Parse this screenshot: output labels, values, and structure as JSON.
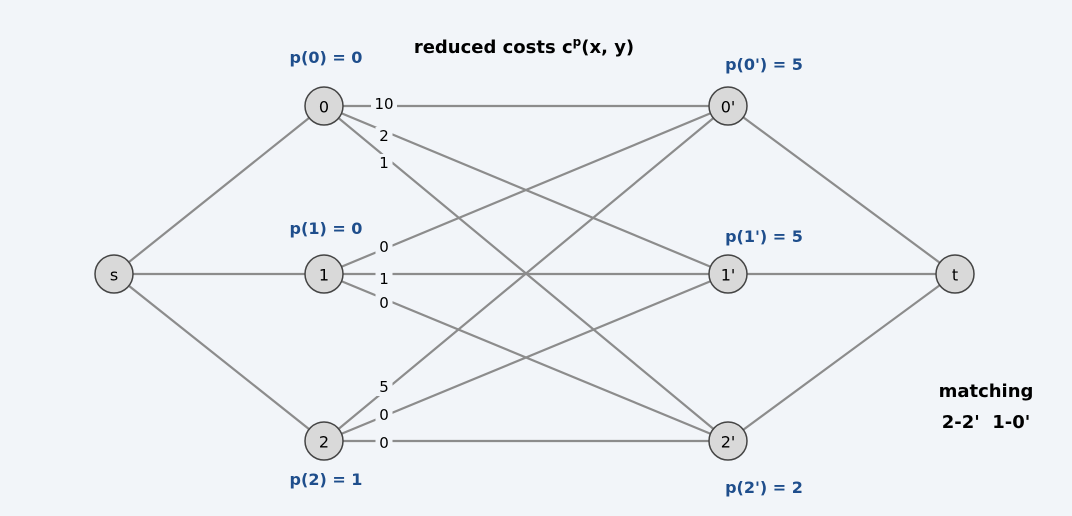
{
  "title": {
    "main": "reduced costs c",
    "sup": "p",
    "args": "(x, y)"
  },
  "nodes": [
    {
      "id": "s",
      "label": "s"
    },
    {
      "id": "0",
      "label": "0"
    },
    {
      "id": "1",
      "label": "1"
    },
    {
      "id": "2",
      "label": "2"
    },
    {
      "id": "0p",
      "label": "0'"
    },
    {
      "id": "1p",
      "label": "1'"
    },
    {
      "id": "2p",
      "label": "2'"
    },
    {
      "id": "t",
      "label": "t"
    }
  ],
  "potentials": {
    "left": [
      "p(0) = 0",
      "p(1) = 0",
      "p(2) = 1"
    ],
    "right": [
      "p(0') = 5",
      "p(1') = 5",
      "p(2') = 2"
    ]
  },
  "edges": [
    {
      "from": "s",
      "to": "0"
    },
    {
      "from": "s",
      "to": "1"
    },
    {
      "from": "s",
      "to": "2"
    },
    {
      "from": "0",
      "to": "0p",
      "cost": "10"
    },
    {
      "from": "0",
      "to": "1p",
      "cost": "2"
    },
    {
      "from": "0",
      "to": "2p",
      "cost": "1"
    },
    {
      "from": "1",
      "to": "0p",
      "cost": "0"
    },
    {
      "from": "1",
      "to": "1p",
      "cost": "1"
    },
    {
      "from": "1",
      "to": "2p",
      "cost": "0"
    },
    {
      "from": "2",
      "to": "0p",
      "cost": "5"
    },
    {
      "from": "2",
      "to": "1p",
      "cost": "0"
    },
    {
      "from": "2",
      "to": "2p",
      "cost": "0"
    },
    {
      "from": "0p",
      "to": "t"
    },
    {
      "from": "1p",
      "to": "t"
    },
    {
      "from": "2p",
      "to": "t"
    }
  ],
  "matching": {
    "heading": "matching",
    "pairs": "2-2'  1-0'"
  },
  "colors": {
    "potential": "#1f4e8c",
    "edge": "#8c8c8c",
    "node_fill": "#d9d9d9",
    "background": "#f2f5f9"
  }
}
